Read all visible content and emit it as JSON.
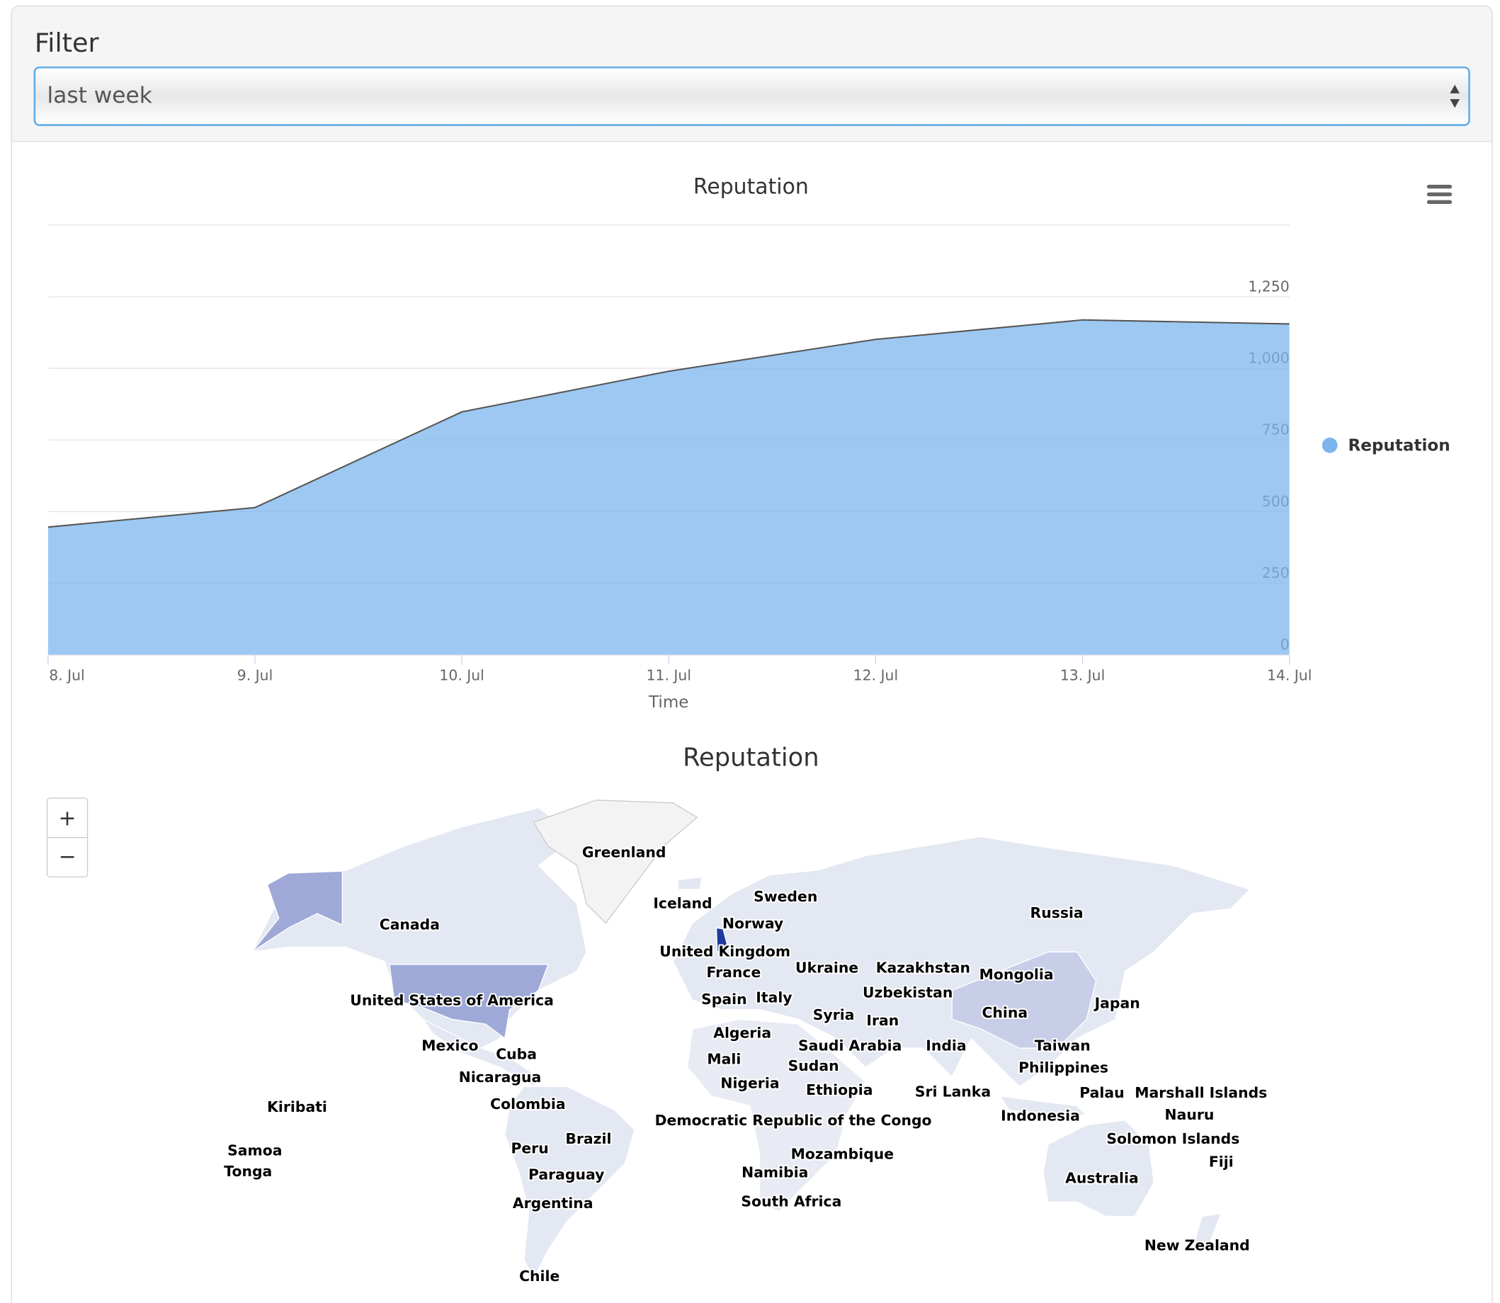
{
  "filter": {
    "label": "Filter",
    "selected": "last week"
  },
  "chart_data": {
    "type": "area",
    "title": "Reputation",
    "x_label": "Time",
    "categories": [
      "8. Jul",
      "9. Jul",
      "10. Jul",
      "11. Jul",
      "12. Jul",
      "13. Jul",
      "14. Jul"
    ],
    "series": [
      {
        "name": "Reputation",
        "color": "#7cb5ec",
        "values": [
          446,
          514,
          848,
          990,
          1101,
          1169,
          1155
        ]
      }
    ],
    "line_color": "#555555",
    "ylim": [
      0,
      1500
    ],
    "yticks": [
      0,
      250,
      500,
      750,
      {
        "value": 1000,
        "label": "1,000"
      },
      {
        "value": 1250,
        "label": "1,250"
      }
    ],
    "grid": true,
    "legend": "right"
  },
  "map": {
    "title": "Reputation",
    "zoom_in": "+",
    "zoom_out": "−",
    "labels": [
      "Greenland",
      "Iceland",
      "Sweden",
      "Norway",
      "United Kingdom",
      "Canada",
      "Russia",
      "Kazakhstan",
      "Mongolia",
      "Ukraine",
      "France",
      "Uzbekistan",
      "United States of America",
      "Spain",
      "Italy",
      "Syria",
      "Iran",
      "China",
      "Japan",
      "Algeria",
      "Saudi Arabia",
      "India",
      "Taiwan",
      "Mexico",
      "Cuba",
      "Mali",
      "Sudan",
      "Philippines",
      "Nicaragua",
      "Nigeria",
      "Ethiopia",
      "Sri Lanka",
      "Palau",
      "Marshall Islands",
      "Kiribati",
      "Colombia",
      "Democratic Republic of the Congo",
      "Indonesia",
      "Nauru",
      "Brazil",
      "Solomon Islands",
      "Samoa",
      "Peru",
      "Mozambique",
      "Fiji",
      "Tonga",
      "Paraguay",
      "Namibia",
      "Australia",
      "Argentina",
      "South Africa",
      "New Zealand",
      "Chile"
    ]
  }
}
